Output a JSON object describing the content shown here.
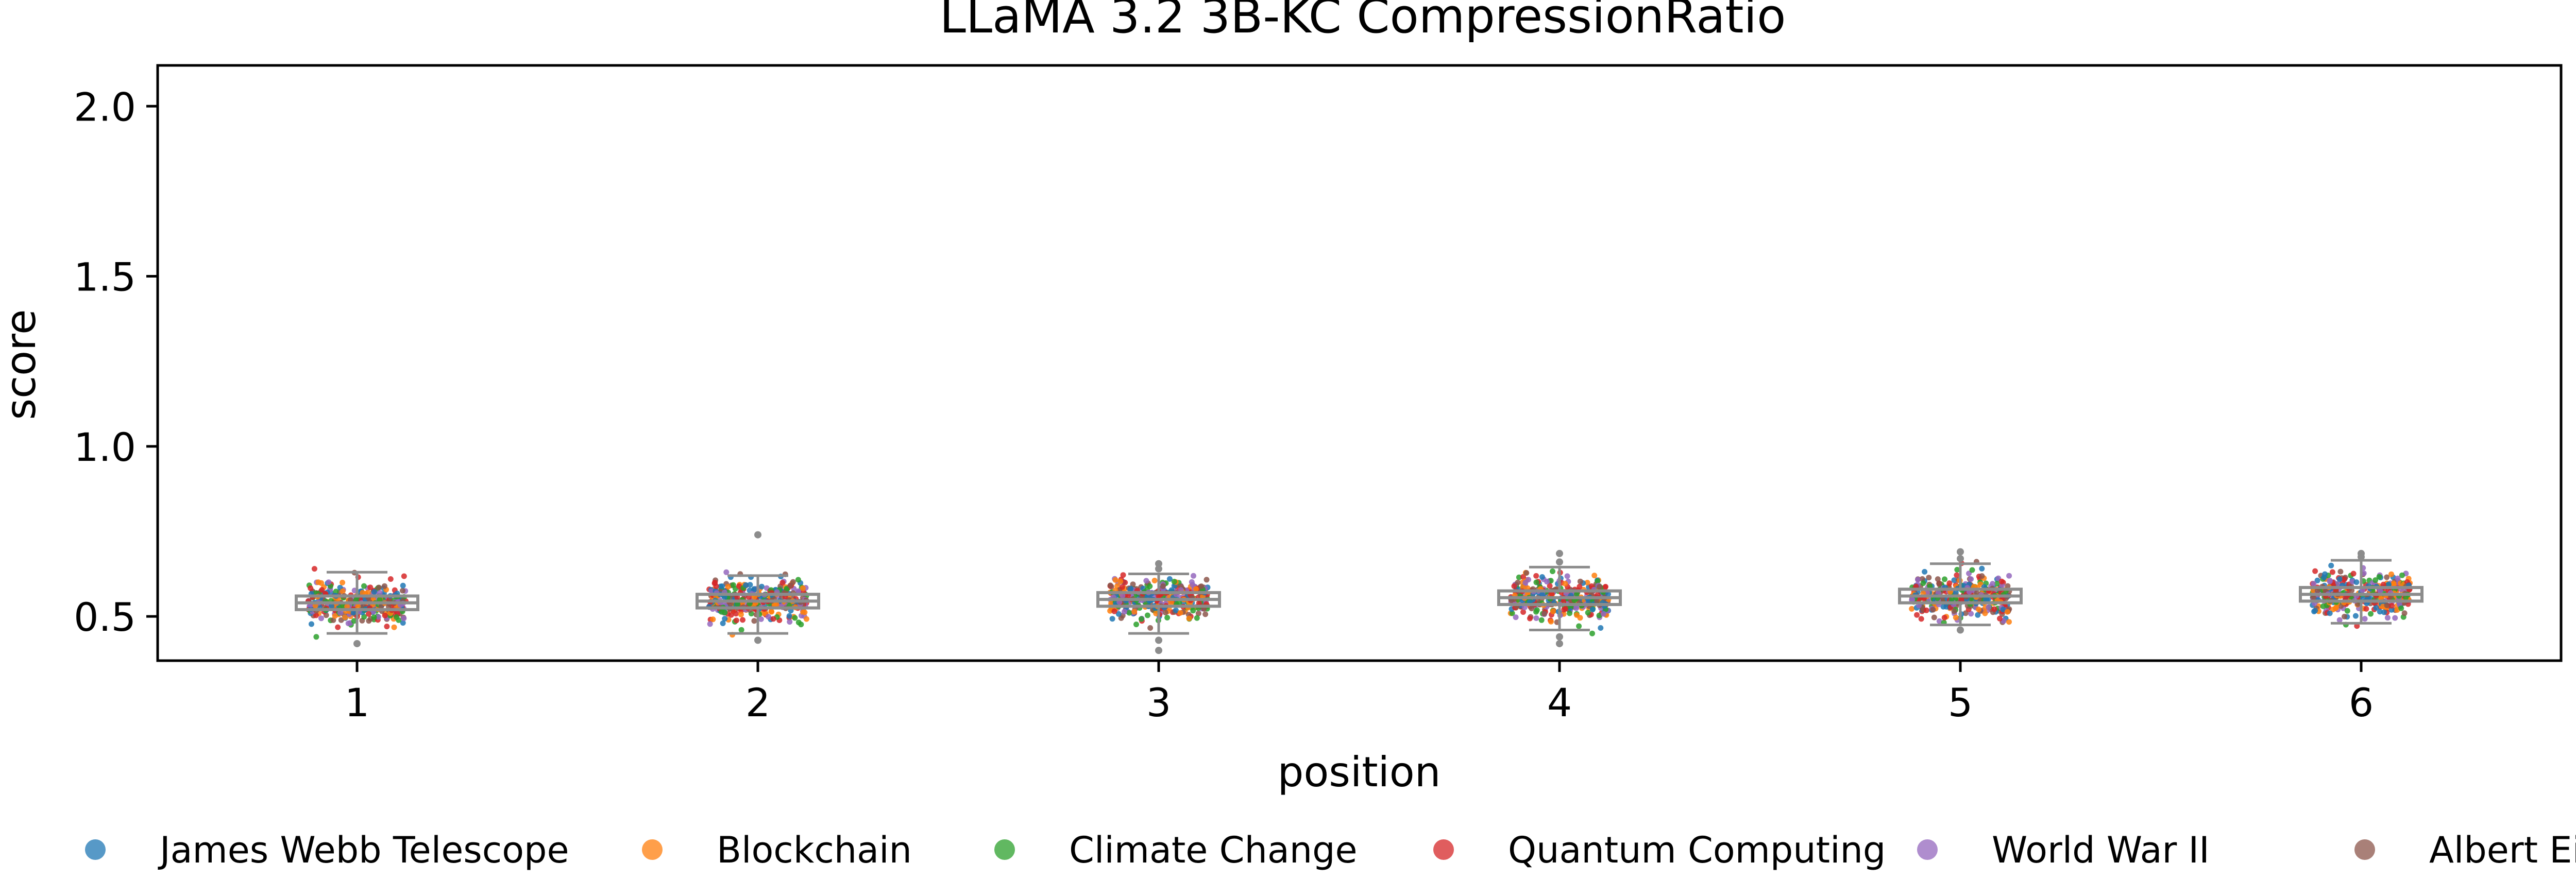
{
  "chart_data": {
    "type": "box-strip",
    "title": "LLaMA 3.2 3B-KC CompressionRatio",
    "xlabel": "position",
    "ylabel": "score",
    "categories": [
      "1",
      "2",
      "3",
      "4",
      "5",
      "6"
    ],
    "yticks": [
      "0.5",
      "1.0",
      "1.5",
      "2.0"
    ],
    "ytick_values": [
      0.5,
      1.0,
      1.5,
      2.0
    ],
    "ylim": [
      0.37,
      2.12
    ],
    "grid": false,
    "legend_position": "bottom",
    "series": [
      {
        "name": "James Webb Telescope",
        "color": "#1f77b4"
      },
      {
        "name": "Blockchain",
        "color": "#ff7f0e"
      },
      {
        "name": "Climate Change",
        "color": "#2ca02c"
      },
      {
        "name": "Quantum Computing",
        "color": "#d62728"
      },
      {
        "name": "World War II",
        "color": "#9467bd"
      },
      {
        "name": "Albert Einstein",
        "color": "#8c564b"
      }
    ],
    "box_color": "#8c8c8c",
    "boxes": [
      {
        "position": "1",
        "whisker_low": 0.45,
        "q1": 0.52,
        "median": 0.54,
        "q3": 0.56,
        "whisker_high": 0.63,
        "outliers": [
          0.42
        ]
      },
      {
        "position": "2",
        "whisker_low": 0.45,
        "q1": 0.525,
        "median": 0.545,
        "q3": 0.565,
        "whisker_high": 0.62,
        "outliers": [
          0.43,
          0.74
        ]
      },
      {
        "position": "3",
        "whisker_low": 0.45,
        "q1": 0.53,
        "median": 0.55,
        "q3": 0.57,
        "whisker_high": 0.625,
        "outliers": [
          0.4,
          0.43,
          0.64,
          0.655
        ]
      },
      {
        "position": "4",
        "whisker_low": 0.46,
        "q1": 0.535,
        "median": 0.555,
        "q3": 0.575,
        "whisker_high": 0.645,
        "outliers": [
          0.42,
          0.44,
          0.66,
          0.685
        ]
      },
      {
        "position": "5",
        "whisker_low": 0.475,
        "q1": 0.54,
        "median": 0.56,
        "q3": 0.58,
        "whisker_high": 0.655,
        "outliers": [
          0.46,
          0.67,
          0.69
        ]
      },
      {
        "position": "6",
        "whisker_low": 0.48,
        "q1": 0.545,
        "median": 0.565,
        "q3": 0.585,
        "whisker_high": 0.665,
        "outliers": [
          0.675,
          0.685
        ]
      }
    ],
    "points_per_series_per_position": 60
  }
}
